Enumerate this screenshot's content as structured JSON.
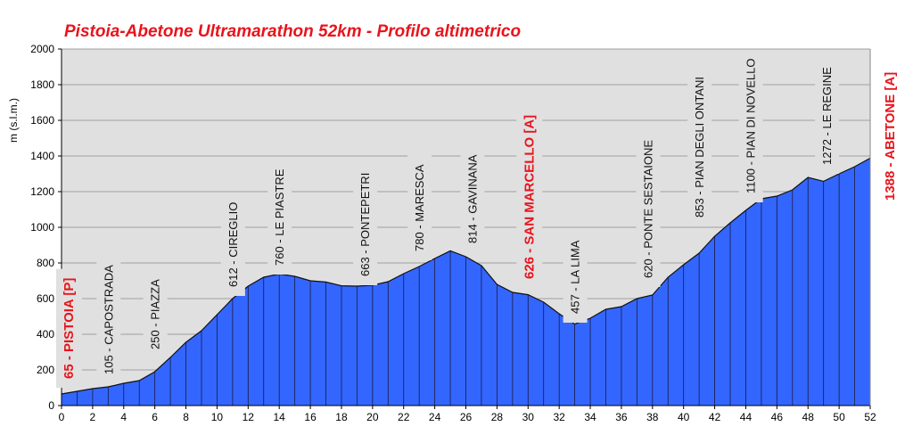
{
  "chart_data": {
    "type": "area",
    "title": "Pistoia-Abetone  Ultramarathon  52km  - Profilo altimetrico",
    "xlabel": "",
    "ylabel": "m (s.l.m.)",
    "xlim": [
      0,
      52
    ],
    "ylim": [
      0,
      2000
    ],
    "xticks": [
      0,
      2,
      4,
      6,
      8,
      10,
      12,
      14,
      16,
      18,
      20,
      22,
      24,
      26,
      28,
      30,
      32,
      34,
      36,
      38,
      40,
      42,
      44,
      46,
      48,
      50,
      52
    ],
    "yticks": [
      0,
      200,
      400,
      600,
      800,
      1000,
      1200,
      1400,
      1600,
      1800,
      2000
    ],
    "grid": true,
    "colors": {
      "fill": "#3366ff",
      "background": "#e0e0e0",
      "grid": "#a0a0a0",
      "major_label": "#e8141c"
    },
    "x": [
      0,
      1,
      2,
      3,
      4,
      5,
      6,
      7,
      8,
      9,
      10,
      11,
      12,
      13,
      14,
      15,
      16,
      17,
      18,
      19,
      20,
      21,
      22,
      23,
      24,
      25,
      26,
      27,
      28,
      29,
      30,
      31,
      32,
      33,
      34,
      35,
      36,
      37,
      38,
      39,
      40,
      41,
      42,
      43,
      44,
      45,
      46,
      47,
      48,
      49,
      50,
      51,
      52
    ],
    "y": [
      65,
      80,
      95,
      105,
      125,
      140,
      190,
      270,
      355,
      420,
      510,
      600,
      670,
      720,
      738,
      725,
      700,
      693,
      672,
      670,
      675,
      695,
      740,
      780,
      825,
      868,
      835,
      785,
      680,
      635,
      622,
      580,
      515,
      457,
      490,
      540,
      555,
      600,
      620,
      720,
      790,
      855,
      950,
      1025,
      1095,
      1160,
      1175,
      1210,
      1280,
      1258,
      1300,
      1340,
      1388
    ],
    "annotations": [
      {
        "text": "65 - PISTOIA  [P]",
        "km": 0.4,
        "major": true,
        "base": 425
      },
      {
        "text": "105 - CAPOSTRADA",
        "km": 3,
        "major": false,
        "base": 420
      },
      {
        "text": "250 - PIAZZA",
        "km": 6,
        "major": false,
        "base": 392
      },
      {
        "text": "612 - CIREGLIO",
        "km": 11,
        "major": false,
        "base": 322
      },
      {
        "text": "760 - LE PIASTRE",
        "km": 14,
        "major": false,
        "base": 298
      },
      {
        "text": "663 - PONTEPETRI",
        "km": 19.5,
        "major": false,
        "base": 310
      },
      {
        "text": "780 - MARESCA",
        "km": 23,
        "major": false,
        "base": 282
      },
      {
        "text": "814 - GAVINANA",
        "km": 26.4,
        "major": false,
        "base": 273
      },
      {
        "text": "626 - SAN MARCELLO  [A]",
        "km": 30,
        "major": true,
        "base": 313
      },
      {
        "text": "457 - LA LIMA",
        "km": 33,
        "major": false,
        "base": 352
      },
      {
        "text": "620 - PONTE  SESTAIONE",
        "km": 37.7,
        "major": false,
        "base": 312
      },
      {
        "text": "853 - PIAN DEGLI ONTANI",
        "km": 41,
        "major": false,
        "base": 244
      },
      {
        "text": "1100 - PIAN DI NOVELLO",
        "km": 44.3,
        "major": false,
        "base": 217
      },
      {
        "text": "1272 - LE REGINE",
        "km": 49.2,
        "major": false,
        "base": 185
      },
      {
        "text": "1388 - ABETONE  [A]",
        "km": 53.2,
        "major": true,
        "base": 225
      }
    ]
  }
}
